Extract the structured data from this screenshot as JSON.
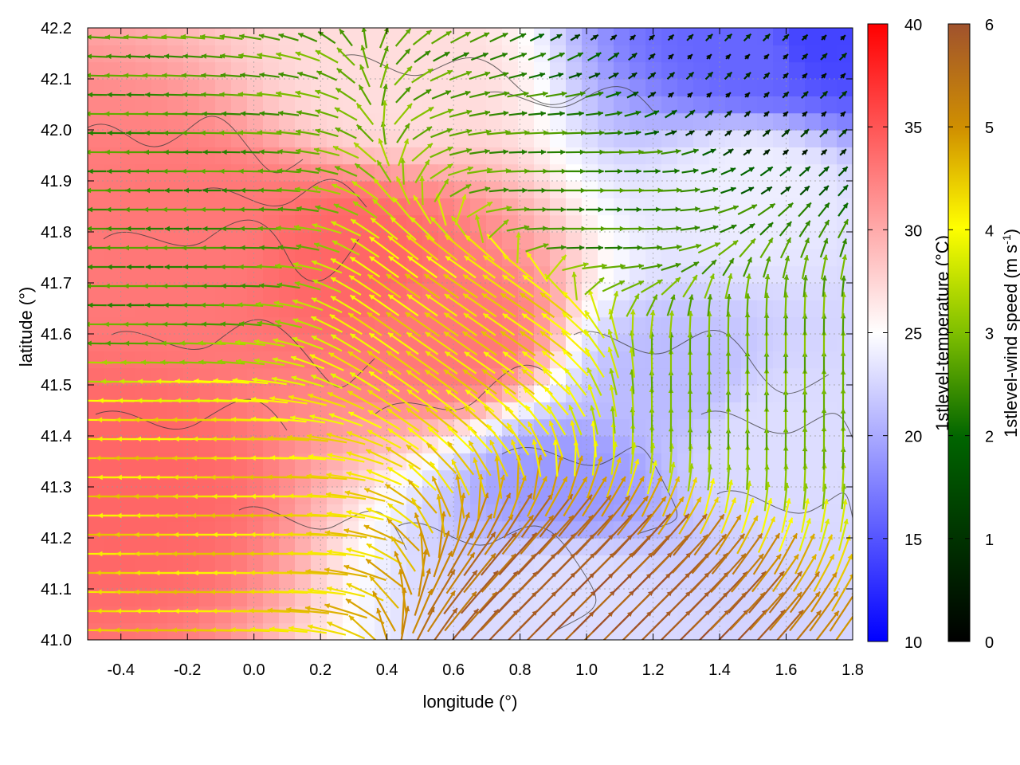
{
  "chart_data": {
    "type": "heatmap",
    "xlabel": "longitude (°)",
    "ylabel": "latitude (°)",
    "xlim": [
      -0.5,
      1.8
    ],
    "ylim": [
      41.0,
      42.2
    ],
    "x_ticks": [
      "-0.4",
      "-0.2",
      "0.0",
      "0.2",
      "0.4",
      "0.6",
      "0.8",
      "1.0",
      "1.2",
      "1.4",
      "1.6",
      "1.8"
    ],
    "x_tick_values": [
      -0.4,
      -0.2,
      0.0,
      0.2,
      0.4,
      0.6,
      0.8,
      1.0,
      1.2,
      1.4,
      1.6,
      1.8
    ],
    "y_ticks": [
      "41.0",
      "41.1",
      "41.2",
      "41.3",
      "41.4",
      "41.5",
      "41.6",
      "41.7",
      "41.8",
      "41.9",
      "42.0",
      "42.1",
      "42.2"
    ],
    "y_tick_values": [
      41.0,
      41.1,
      41.2,
      41.3,
      41.4,
      41.5,
      41.6,
      41.7,
      41.8,
      41.9,
      42.0,
      42.1,
      42.2
    ],
    "temperature_colorbar": {
      "label": "1stlevel-temperature (°C)",
      "range": [
        10,
        40
      ],
      "ticks": [
        "10",
        "15",
        "20",
        "25",
        "30",
        "35",
        "40"
      ],
      "tick_values": [
        10,
        15,
        20,
        25,
        30,
        35,
        40
      ],
      "colors": [
        "#0000ff",
        "#ffffff",
        "#ff0000"
      ]
    },
    "wind_colorbar": {
      "label_main": "1stlevel-wind speed (m s",
      "label_sup": "-1",
      "label_end": ")",
      "range": [
        0,
        6
      ],
      "ticks": [
        "0",
        "1",
        "2",
        "3",
        "4",
        "5",
        "6"
      ],
      "tick_values": [
        0,
        1,
        2,
        3,
        4,
        5,
        6
      ],
      "colors": [
        "#000000",
        "#006400",
        "#7fbf00",
        "#ffff00",
        "#d09000",
        "#a0522d"
      ]
    },
    "temperature_field_samples": [
      {
        "lon": -0.4,
        "lat": 41.3,
        "temp": 34
      },
      {
        "lon": -0.2,
        "lat": 41.8,
        "temp": 33
      },
      {
        "lon": 0.3,
        "lat": 41.75,
        "temp": 34
      },
      {
        "lon": 0.6,
        "lat": 41.6,
        "temp": 33
      },
      {
        "lon": 0.4,
        "lat": 42.1,
        "temp": 27
      },
      {
        "lon": 0.95,
        "lat": 41.1,
        "temp": 23
      },
      {
        "lon": 0.95,
        "lat": 41.3,
        "temp": 19
      },
      {
        "lon": 1.25,
        "lat": 41.5,
        "temp": 21
      },
      {
        "lon": 1.55,
        "lat": 41.4,
        "temp": 23
      },
      {
        "lon": 1.5,
        "lat": 42.15,
        "temp": 16
      },
      {
        "lon": 1.7,
        "lat": 42.18,
        "temp": 14
      },
      {
        "lon": 1.5,
        "lat": 41.9,
        "temp": 24
      }
    ],
    "wind_field_samples": [
      {
        "lon": -0.2,
        "lat": 41.25,
        "dir": "west",
        "speed": 4.0
      },
      {
        "lon": -0.3,
        "lat": 41.8,
        "dir": "west",
        "speed": 1.8
      },
      {
        "lon": 0.7,
        "lat": 41.65,
        "dir": "northwest",
        "speed": 4.0
      },
      {
        "lon": 1.0,
        "lat": 41.85,
        "dir": "east",
        "speed": 1.7
      },
      {
        "lon": 1.1,
        "lat": 41.05,
        "dir": "northeast",
        "speed": 5.8
      },
      {
        "lon": 1.5,
        "lat": 41.5,
        "dir": "north",
        "speed": 2.2
      },
      {
        "lon": 1.5,
        "lat": 42.15,
        "dir": "calm",
        "speed": 0.3
      }
    ],
    "grid": true
  }
}
